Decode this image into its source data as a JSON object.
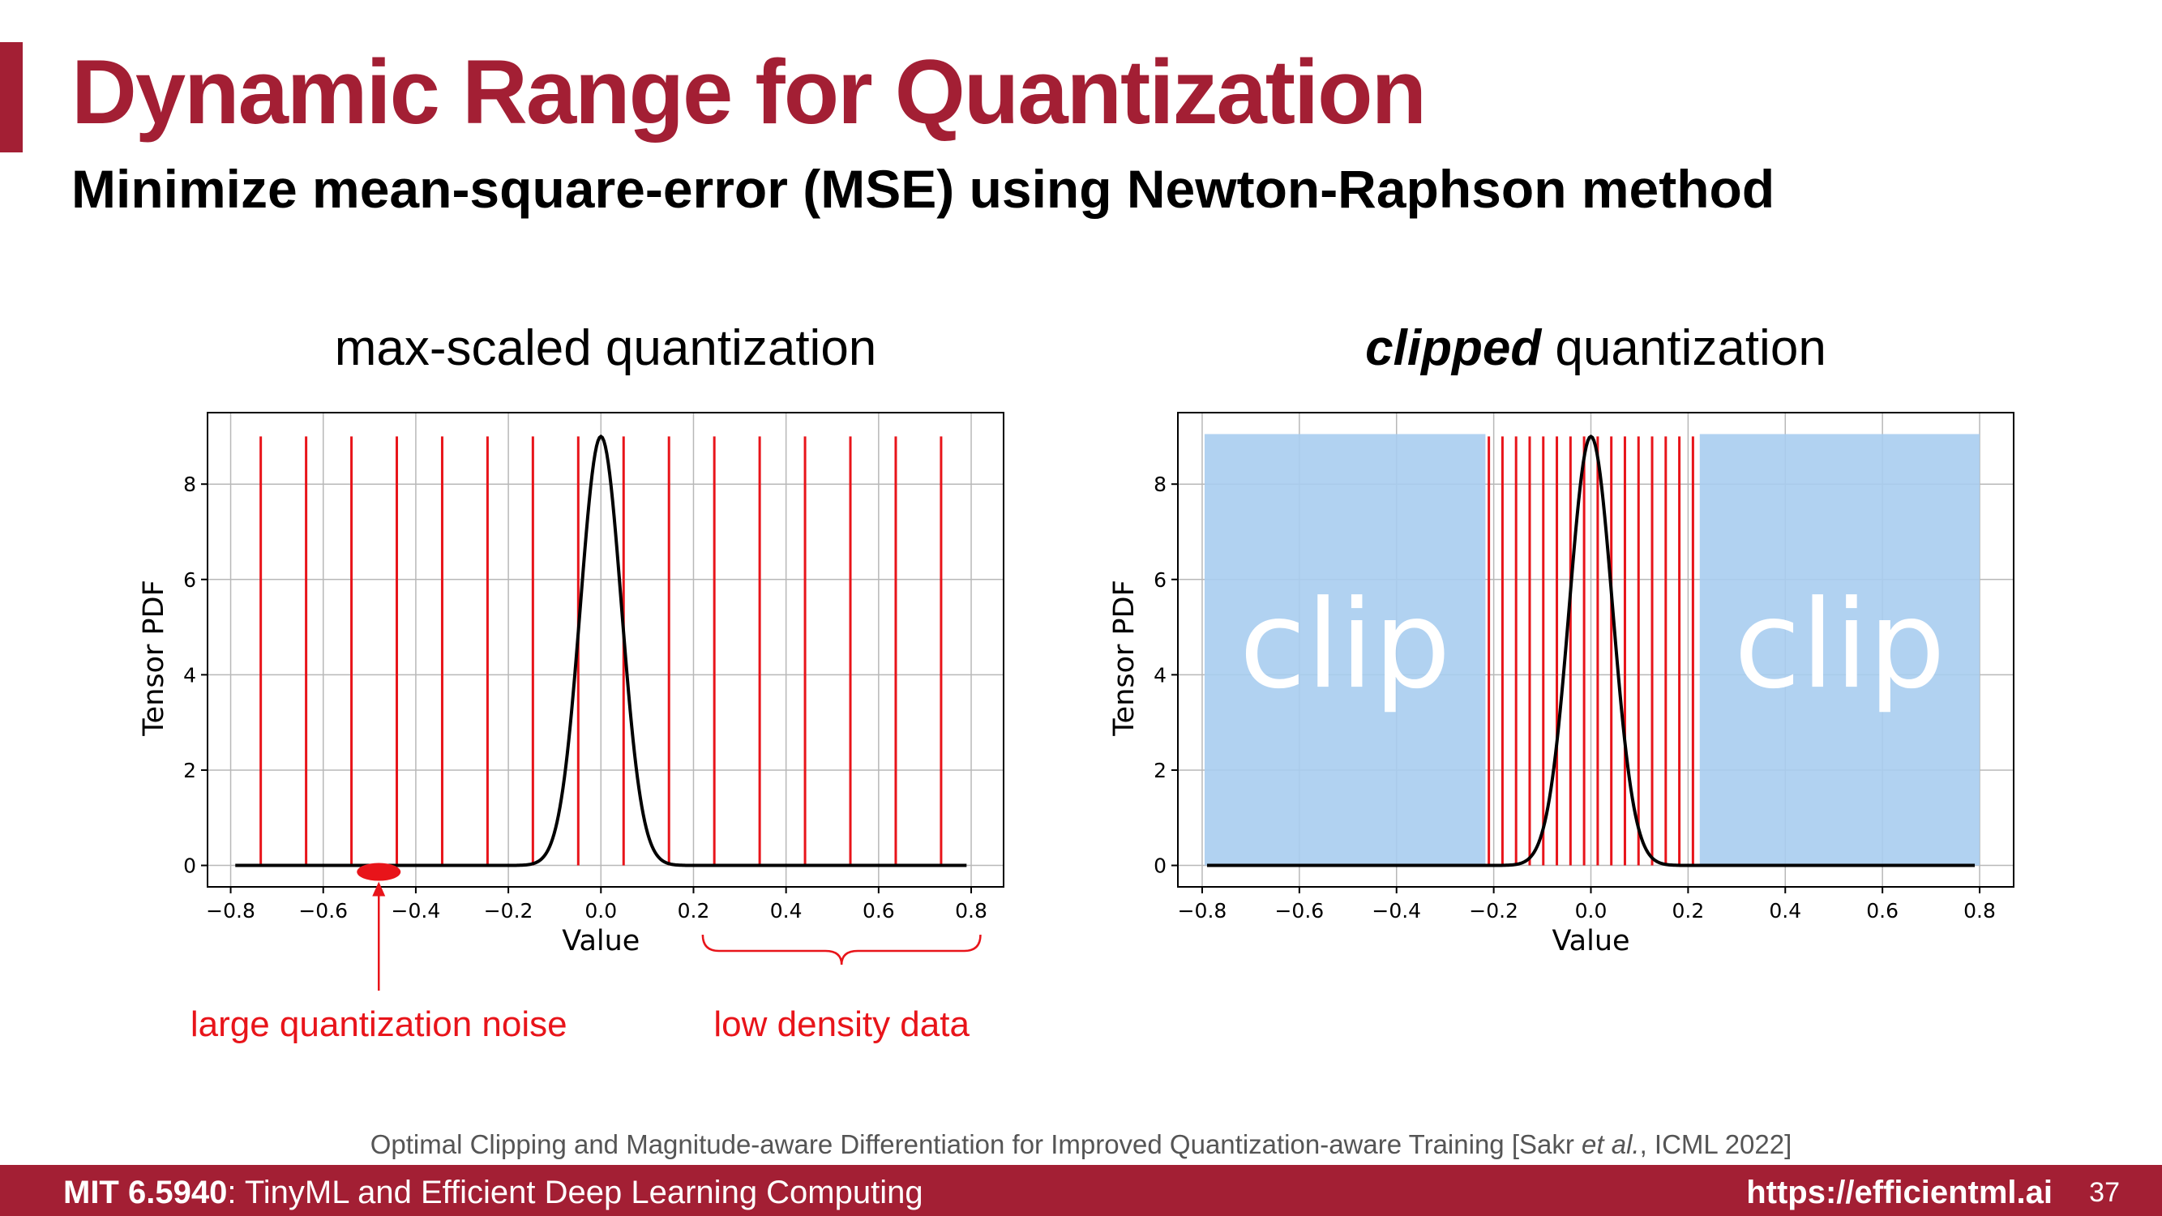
{
  "slide": {
    "title": "Dynamic Range for Quantization",
    "subtitle": "Minimize mean-square-error (MSE) using Newton-Raphson method"
  },
  "colors": {
    "accent": "#a31f34",
    "quant_level": "#e8141a",
    "clip_region": "#a8cdf0",
    "pdf_line": "#000000"
  },
  "chart_data": [
    {
      "type": "line",
      "title_plain": "max-scaled quantization",
      "title_emph": "",
      "xlabel": "Value",
      "ylabel": "Tensor PDF",
      "xlim": [
        -0.85,
        0.87
      ],
      "ylim": [
        -0.45,
        9.5
      ],
      "xticks": [
        -0.8,
        -0.6,
        -0.4,
        -0.2,
        0.0,
        0.2,
        0.4,
        0.6,
        0.8
      ],
      "xtick_labels": [
        "−0.8",
        "−0.6",
        "−0.4",
        "−0.2",
        "0.0",
        "0.2",
        "0.4",
        "0.6",
        "0.8"
      ],
      "yticks": [
        0,
        2,
        4,
        6,
        8
      ],
      "ytick_labels": [
        "0",
        "2",
        "4",
        "6",
        "8"
      ],
      "grid": true,
      "pdf": {
        "peak": 9.0,
        "sigma": 0.0443,
        "x_range": [
          -0.79,
          0.79
        ]
      },
      "quantization_levels": [
        -0.735,
        -0.637,
        -0.539,
        -0.441,
        -0.343,
        -0.245,
        -0.147,
        -0.049,
        0.049,
        0.147,
        0.245,
        0.343,
        0.441,
        0.539,
        0.637,
        0.735
      ],
      "level_height": 9.0,
      "annotations": {
        "noise_label": "large quantization noise",
        "noise_x": -0.48,
        "density_label": "low density data",
        "density_range": [
          0.22,
          0.82
        ]
      }
    },
    {
      "type": "line",
      "title_plain": "quantization",
      "title_emph": "clipped",
      "xlabel": "Value",
      "ylabel": "Tensor PDF",
      "xlim": [
        -0.85,
        0.87
      ],
      "ylim": [
        -0.45,
        9.5
      ],
      "xticks": [
        -0.8,
        -0.6,
        -0.4,
        -0.2,
        0.0,
        0.2,
        0.4,
        0.6,
        0.8
      ],
      "xtick_labels": [
        "−0.8",
        "−0.6",
        "−0.4",
        "−0.2",
        "0.0",
        "0.2",
        "0.4",
        "0.6",
        "0.8"
      ],
      "yticks": [
        0,
        2,
        4,
        6,
        8
      ],
      "ytick_labels": [
        "0",
        "2",
        "4",
        "6",
        "8"
      ],
      "grid": true,
      "pdf": {
        "peak": 9.0,
        "sigma": 0.0443,
        "x_range": [
          -0.79,
          0.79
        ]
      },
      "quantization_levels": [
        -0.21,
        -0.182,
        -0.154,
        -0.126,
        -0.098,
        -0.07,
        -0.042,
        -0.014,
        0.014,
        0.042,
        0.07,
        0.098,
        0.126,
        0.154,
        0.182,
        0.21
      ],
      "level_height": 9.0,
      "clip_regions": [
        {
          "x": [
            -0.795,
            -0.217
          ],
          "y": [
            0,
            9.05
          ],
          "label": "clip"
        },
        {
          "x": [
            0.224,
            0.8
          ],
          "y": [
            0,
            9.05
          ],
          "label": "clip"
        }
      ]
    }
  ],
  "citation": {
    "prefix": "Optimal Clipping and Magnitude-aware Differentiation for Improved Quantization-aware Training [Sakr ",
    "italic": "et al.",
    "suffix": ", ICML 2022]"
  },
  "footer": {
    "course_code": "MIT 6.5940",
    "course_name": ": TinyML and Efficient Deep Learning Computing",
    "url": "https://efficientml.ai",
    "page": "37"
  }
}
